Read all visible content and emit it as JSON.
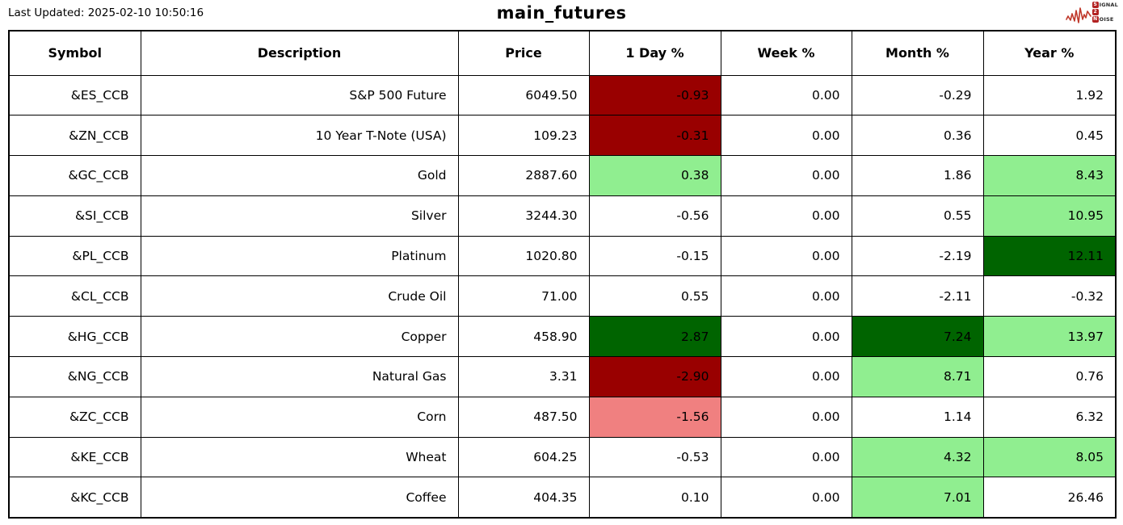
{
  "header": {
    "last_updated": "Last Updated: 2025-02-10 10:50:16",
    "title": "main_futures"
  },
  "logo": {
    "line1_badge": "S",
    "line1_rest": "IGNAL",
    "line2_badge": "2",
    "line2_rest": "",
    "line3_badge": "N",
    "line3_rest": "OISE"
  },
  "colors": {
    "dark_red": "#990000",
    "light_red": "#F08080",
    "light_green": "#90EE90",
    "dark_green": "#006400"
  },
  "chart_data": {
    "type": "table",
    "title": "main_futures",
    "columns": [
      "Symbol",
      "Description",
      "Price",
      "1 Day %",
      "Week %",
      "Month %",
      "Year %"
    ],
    "rows": [
      {
        "symbol": "&ES_CCB",
        "description": "S&P 500 Future",
        "price": "6049.50",
        "day": "-0.93",
        "week": "0.00",
        "month": "-0.29",
        "year": "1.92",
        "bg": {
          "day": "dark_red"
        }
      },
      {
        "symbol": "&ZN_CCB",
        "description": "10 Year T-Note (USA)",
        "price": "109.23",
        "day": "-0.31",
        "week": "0.00",
        "month": "0.36",
        "year": "0.45",
        "bg": {
          "day": "dark_red"
        }
      },
      {
        "symbol": "&GC_CCB",
        "description": "Gold",
        "price": "2887.60",
        "day": "0.38",
        "week": "0.00",
        "month": "1.86",
        "year": "8.43",
        "bg": {
          "day": "light_green",
          "year": "light_green"
        }
      },
      {
        "symbol": "&SI_CCB",
        "description": "Silver",
        "price": "3244.30",
        "day": "-0.56",
        "week": "0.00",
        "month": "0.55",
        "year": "10.95",
        "bg": {
          "year": "light_green"
        }
      },
      {
        "symbol": "&PL_CCB",
        "description": "Platinum",
        "price": "1020.80",
        "day": "-0.15",
        "week": "0.00",
        "month": "-2.19",
        "year": "12.11",
        "bg": {
          "year": "dark_green"
        }
      },
      {
        "symbol": "&CL_CCB",
        "description": "Crude Oil",
        "price": "71.00",
        "day": "0.55",
        "week": "0.00",
        "month": "-2.11",
        "year": "-0.32",
        "bg": {}
      },
      {
        "symbol": "&HG_CCB",
        "description": "Copper",
        "price": "458.90",
        "day": "2.87",
        "week": "0.00",
        "month": "7.24",
        "year": "13.97",
        "bg": {
          "day": "dark_green",
          "month": "dark_green",
          "year": "light_green"
        }
      },
      {
        "symbol": "&NG_CCB",
        "description": "Natural Gas",
        "price": "3.31",
        "day": "-2.90",
        "week": "0.00",
        "month": "8.71",
        "year": "0.76",
        "bg": {
          "day": "dark_red",
          "month": "light_green"
        }
      },
      {
        "symbol": "&ZC_CCB",
        "description": "Corn",
        "price": "487.50",
        "day": "-1.56",
        "week": "0.00",
        "month": "1.14",
        "year": "6.32",
        "bg": {
          "day": "light_red"
        }
      },
      {
        "symbol": "&KE_CCB",
        "description": "Wheat",
        "price": "604.25",
        "day": "-0.53",
        "week": "0.00",
        "month": "4.32",
        "year": "8.05",
        "bg": {
          "month": "light_green",
          "year": "light_green"
        }
      },
      {
        "symbol": "&KC_CCB",
        "description": "Coffee",
        "price": "404.35",
        "day": "0.10",
        "week": "0.00",
        "month": "7.01",
        "year": "26.46",
        "bg": {
          "month": "light_green"
        }
      }
    ]
  }
}
